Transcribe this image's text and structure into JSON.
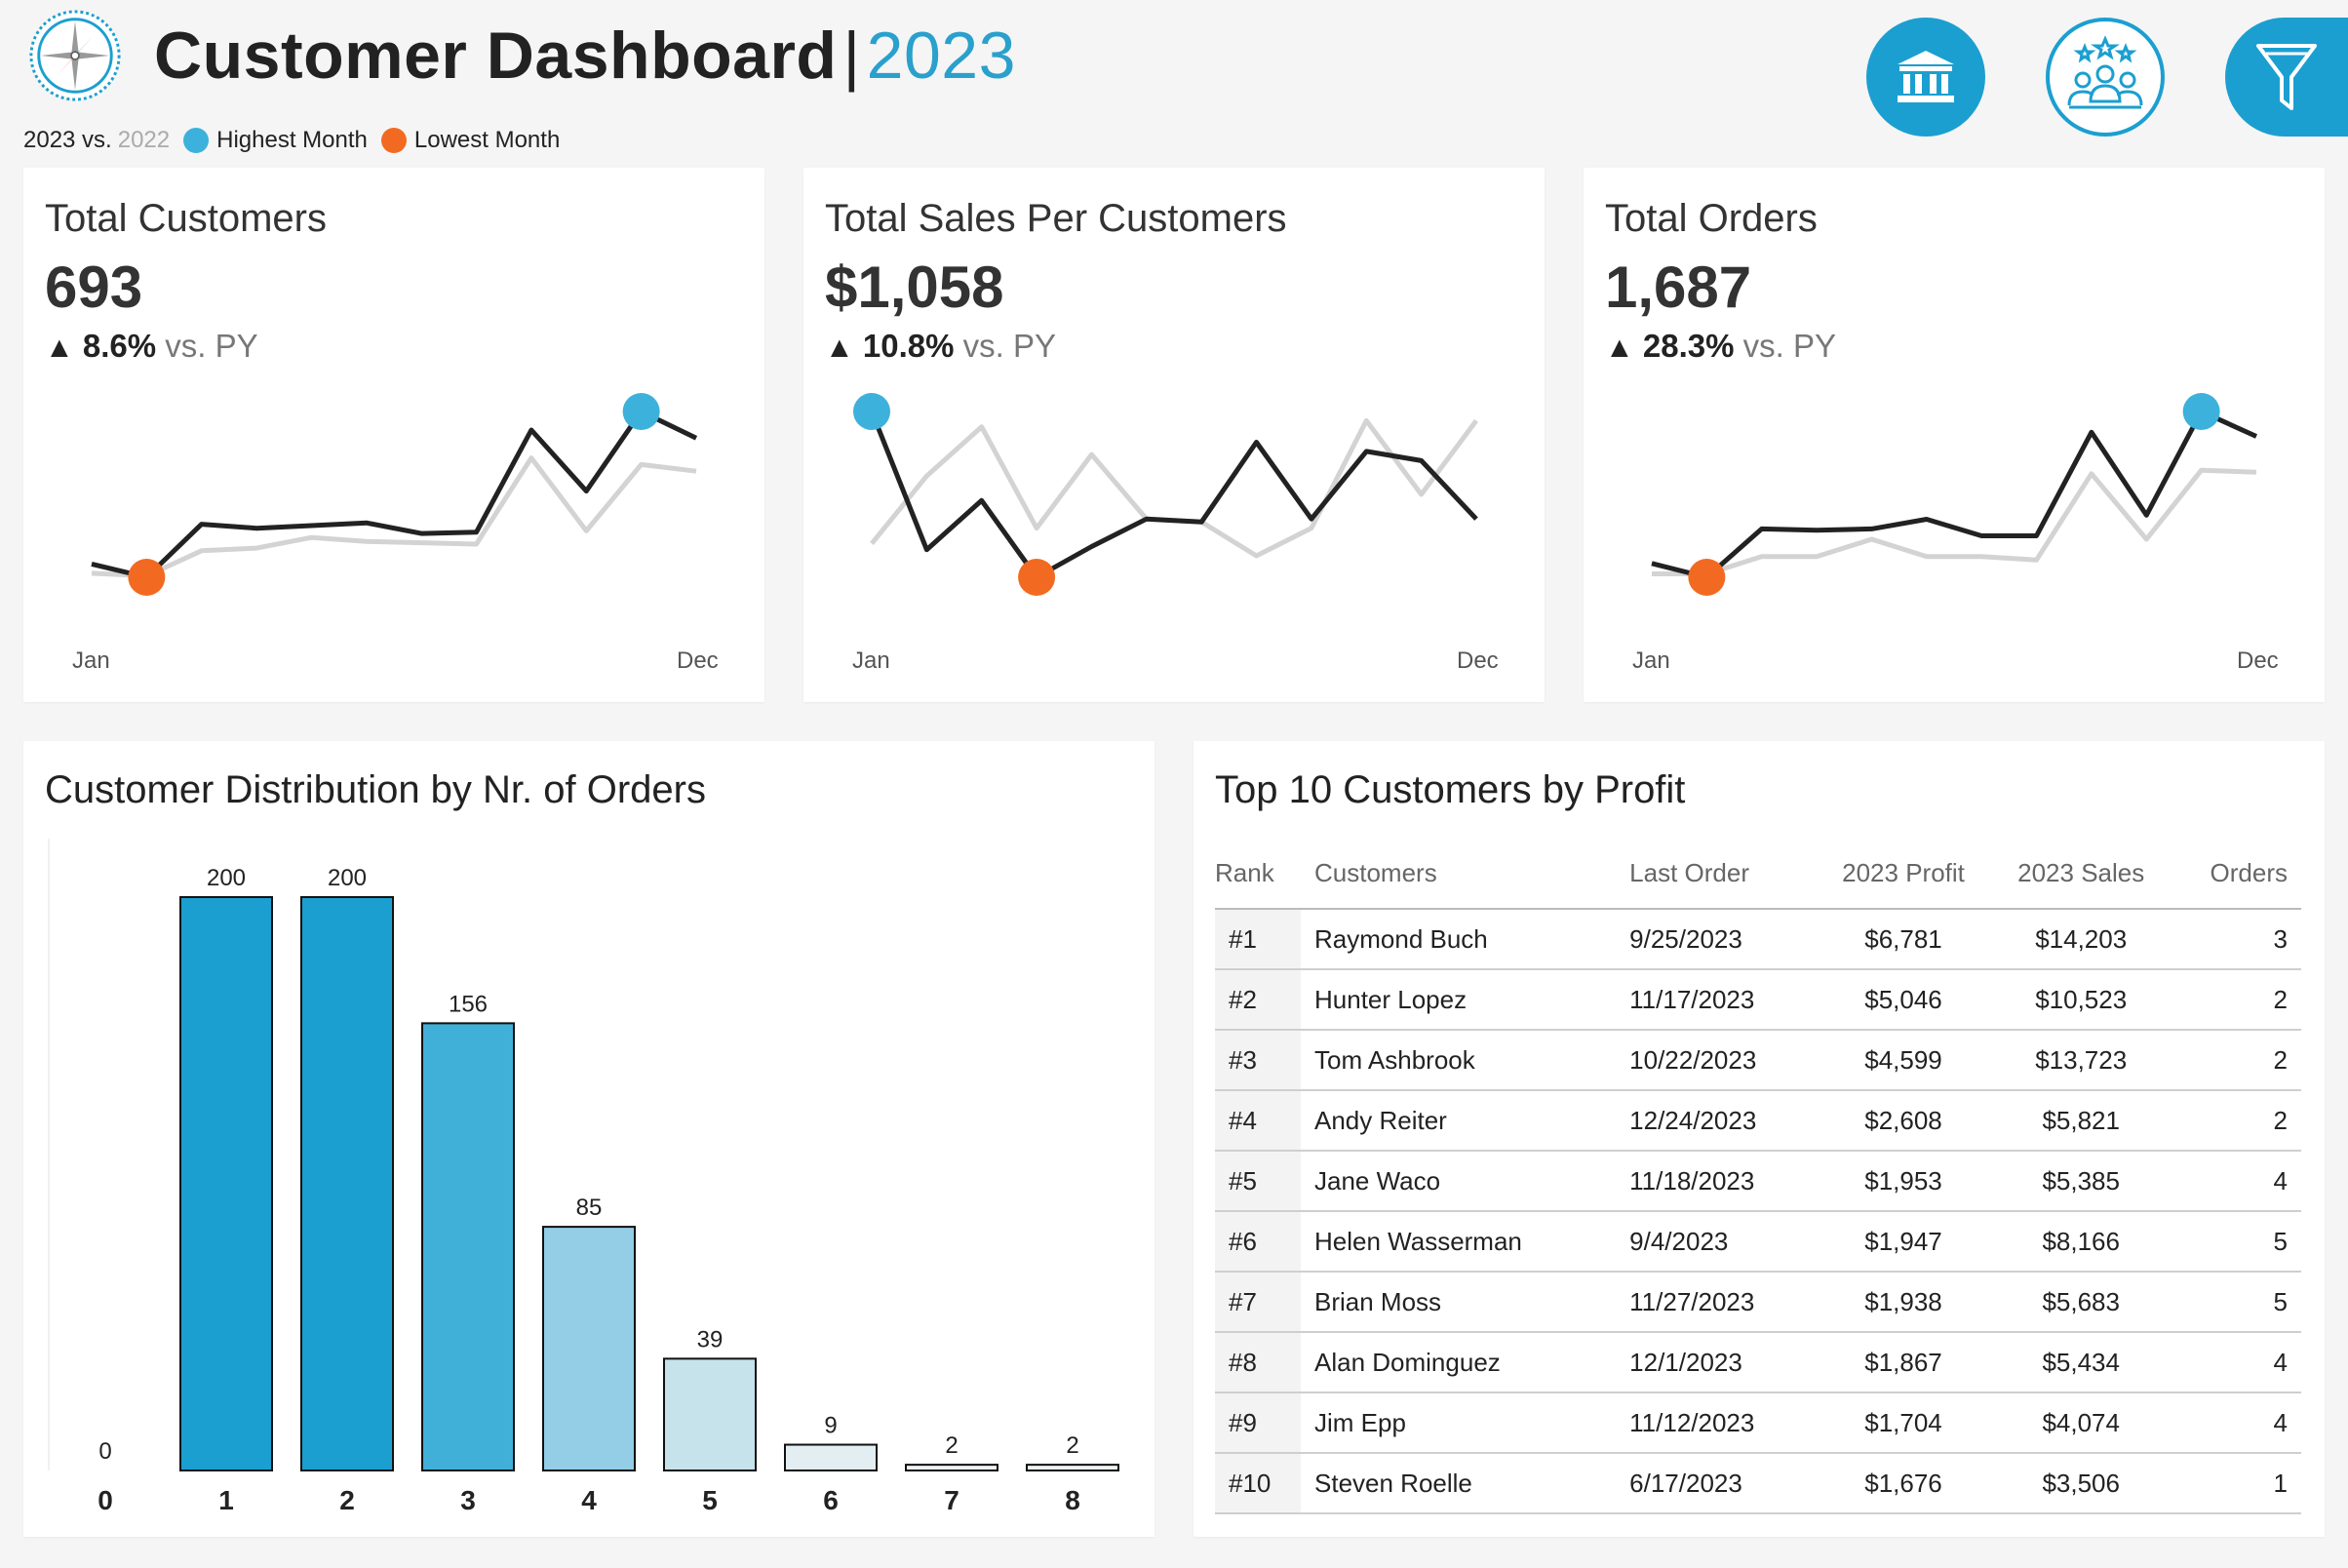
{
  "header": {
    "title": "Customer Dashboard",
    "separator": "|",
    "year": "2023",
    "legend": {
      "current": "2023 vs.",
      "previous": "2022",
      "highest_label": "Highest Month",
      "lowest_label": "Lowest Month",
      "highest_color": "#3cb1dc",
      "lowest_color": "#f26a21"
    },
    "icons": [
      "compass-icon",
      "bank-icon",
      "customers-icon",
      "filter-icon"
    ]
  },
  "kpis": [
    {
      "title": "Total Customers",
      "value": "693",
      "change": "8.6%",
      "vs_label": "vs. PY",
      "x_start": "Jan",
      "x_end": "Dec",
      "current": [
        3.5,
        2.5,
        6.5,
        6.2,
        6.4,
        6.6,
        5.8,
        5.9,
        13.6,
        9.0,
        15.0,
        13.0
      ],
      "previous": [
        2.8,
        2.6,
        4.5,
        4.7,
        5.5,
        5.2,
        5.1,
        5.0,
        11.5,
        6.0,
        11.0,
        10.5
      ],
      "high_index": 10,
      "low_index": 1
    },
    {
      "title": "Total Sales Per Customers",
      "value": "$1,058",
      "change": "10.8%",
      "vs_label": "vs. PY",
      "x_start": "Jan",
      "x_end": "Dec",
      "current": [
        1450,
        1000,
        1160,
        910,
        1010,
        1100,
        1090,
        1350,
        1100,
        1320,
        1290,
        1100
      ],
      "previous": [
        1020,
        1240,
        1400,
        1070,
        1310,
        1100,
        1090,
        980,
        1070,
        1420,
        1180,
        1420
      ],
      "high_index": 0,
      "low_index": 3
    },
    {
      "title": "Total Orders",
      "value": "1,687",
      "change": "28.3%",
      "vs_label": "vs. PY",
      "x_start": "Jan",
      "x_end": "Dec",
      "current": [
        110,
        90,
        160,
        158,
        160,
        174,
        150,
        150,
        300,
        180,
        330,
        294
      ],
      "previous": [
        95,
        95,
        120,
        120,
        145,
        120,
        120,
        115,
        240,
        145,
        245,
        242
      ],
      "high_index": 10,
      "low_index": 1
    }
  ],
  "chart_data": {
    "type": "bar",
    "title": "Customer Distribution by Nr. of Orders",
    "categories": [
      "0",
      "1",
      "2",
      "3",
      "4",
      "5",
      "6",
      "7",
      "8"
    ],
    "values": [
      0,
      200,
      200,
      156,
      85,
      39,
      9,
      2,
      2
    ],
    "labels": [
      "0",
      "200",
      "200",
      "156",
      "85",
      "39",
      "9",
      "2",
      "2"
    ],
    "colors": [
      "#1b9fd0",
      "#1b9fd0",
      "#1b9fd0",
      "#41b0d8",
      "#93cee6",
      "#c6e3ec",
      "#e2eef2",
      "#eef3f5",
      "#eef3f5"
    ],
    "ylim": [
      0,
      200
    ]
  },
  "top10": {
    "title": "Top 10 Customers by Profit",
    "columns": [
      "Rank",
      "Customers",
      "Last Order",
      "2023 Profit",
      "2023 Sales",
      "Orders"
    ],
    "rows": [
      [
        "#1",
        "Raymond Buch",
        "9/25/2023",
        "$6,781",
        "$14,203",
        "3"
      ],
      [
        "#2",
        "Hunter Lopez",
        "11/17/2023",
        "$5,046",
        "$10,523",
        "2"
      ],
      [
        "#3",
        "Tom Ashbrook",
        "10/22/2023",
        "$4,599",
        "$13,723",
        "2"
      ],
      [
        "#4",
        "Andy Reiter",
        "12/24/2023",
        "$2,608",
        "$5,821",
        "2"
      ],
      [
        "#5",
        "Jane Waco",
        "11/18/2023",
        "$1,953",
        "$5,385",
        "4"
      ],
      [
        "#6",
        "Helen Wasserman",
        "9/4/2023",
        "$1,947",
        "$8,166",
        "5"
      ],
      [
        "#7",
        "Brian Moss",
        "11/27/2023",
        "$1,938",
        "$5,683",
        "5"
      ],
      [
        "#8",
        "Alan Dominguez",
        "12/1/2023",
        "$1,867",
        "$5,434",
        "4"
      ],
      [
        "#9",
        "Jim Epp",
        "11/12/2023",
        "$1,704",
        "$4,074",
        "4"
      ],
      [
        "#10",
        "Steven Roelle",
        "6/17/2023",
        "$1,676",
        "$3,506",
        "1"
      ]
    ]
  }
}
